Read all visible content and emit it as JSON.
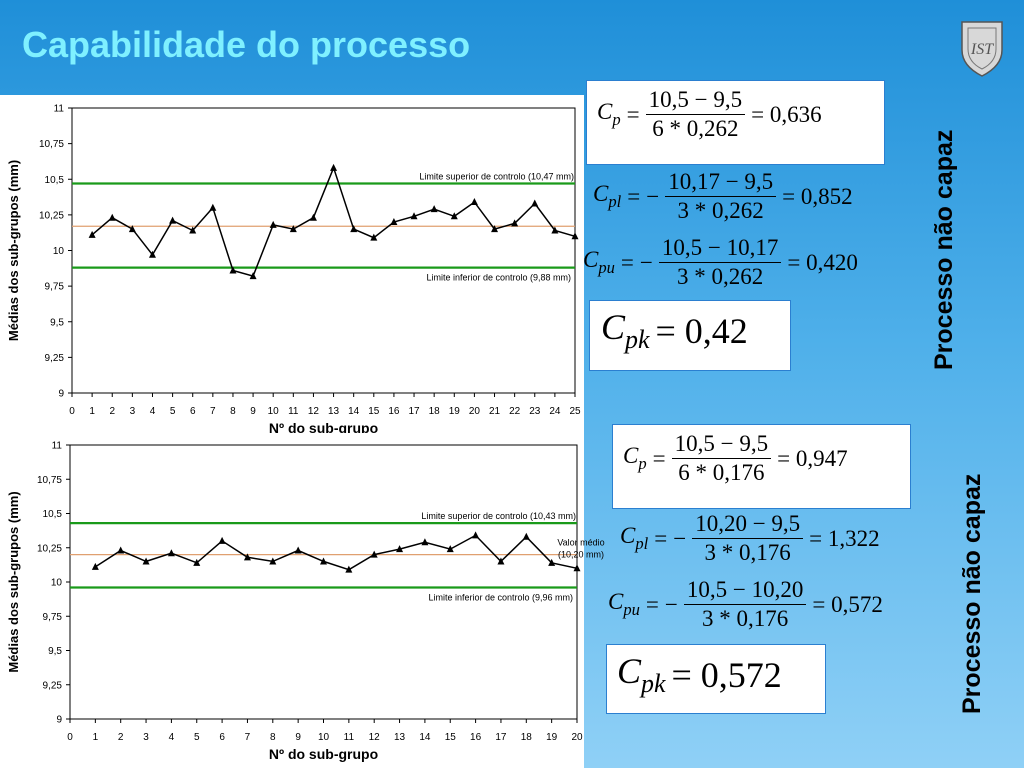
{
  "title": "Capabilidade do processo",
  "logo_icon": "ist-shield-logo",
  "colors": {
    "title": "#7ff0ff",
    "limit_line": "#1a9a1a",
    "mean_line": "#e0a070",
    "series": "#000000"
  },
  "chart_data": [
    {
      "type": "line",
      "xlabel": "Nº do sub-grupo",
      "ylabel": "Médias dos sub-grupos (mm)",
      "xlim": [
        0,
        25
      ],
      "ylim": [
        9,
        11
      ],
      "y_ticks": [
        "9",
        "9,25",
        "9,5",
        "9,75",
        "10",
        "10,25",
        "10,5",
        "10,75",
        "11"
      ],
      "x_ticks": [
        "0",
        "1",
        "2",
        "3",
        "4",
        "5",
        "6",
        "7",
        "8",
        "9",
        "10",
        "11",
        "12",
        "13",
        "14",
        "15",
        "16",
        "17",
        "18",
        "19",
        "20",
        "21",
        "22",
        "23",
        "24",
        "25"
      ],
      "x": [
        1,
        2,
        3,
        4,
        5,
        6,
        7,
        8,
        9,
        10,
        11,
        12,
        13,
        14,
        15,
        16,
        17,
        18,
        19,
        20,
        21,
        22,
        23,
        24,
        25
      ],
      "values": [
        10.11,
        10.23,
        10.15,
        9.97,
        10.21,
        10.14,
        10.3,
        9.86,
        9.82,
        10.18,
        10.15,
        10.23,
        10.58,
        10.15,
        10.09,
        10.2,
        10.24,
        10.29,
        10.24,
        10.34,
        10.15,
        10.19,
        10.33,
        10.14,
        10.1
      ],
      "limits": [
        {
          "label": "Limite superior de controlo (10,47 mm)",
          "value": 10.47,
          "kind": "ucl"
        },
        {
          "label": "Limite inferior de controlo (9,88 mm)",
          "value": 9.88,
          "kind": "lcl"
        },
        {
          "label": "",
          "value": 10.17,
          "kind": "mean"
        }
      ]
    },
    {
      "type": "line",
      "xlabel": "Nº do sub-grupo",
      "ylabel": "Médias dos sub-grupos (mm)",
      "xlim": [
        0,
        20
      ],
      "ylim": [
        9,
        11
      ],
      "y_ticks": [
        "9",
        "9,25",
        "9,5",
        "9,75",
        "10",
        "10,25",
        "10,5",
        "10,75",
        "11"
      ],
      "x_ticks": [
        "0",
        "1",
        "2",
        "3",
        "4",
        "5",
        "6",
        "7",
        "8",
        "9",
        "10",
        "11",
        "12",
        "13",
        "14",
        "15",
        "16",
        "17",
        "18",
        "19",
        "20"
      ],
      "x": [
        1,
        2,
        3,
        4,
        5,
        6,
        7,
        8,
        9,
        10,
        11,
        12,
        13,
        14,
        15,
        16,
        17,
        18,
        19,
        20
      ],
      "values": [
        10.11,
        10.23,
        10.15,
        10.21,
        10.14,
        10.3,
        10.18,
        10.15,
        10.23,
        10.15,
        10.09,
        10.2,
        10.24,
        10.29,
        10.24,
        10.34,
        10.15,
        10.33,
        10.14,
        10.1
      ],
      "limits": [
        {
          "label": "Limite superior de controlo (10,43 mm)",
          "value": 10.43,
          "kind": "ucl"
        },
        {
          "label": "Limite inferior de controlo (9,96 mm)",
          "value": 9.96,
          "kind": "lcl"
        },
        {
          "label": "Valor médio (10,20 mm)",
          "value": 10.2,
          "kind": "mean"
        }
      ]
    }
  ],
  "formulas_top": {
    "cp": {
      "sym": "C",
      "sub": "p",
      "num": "10,5 − 9,5",
      "den": "6 * 0,262",
      "result": "= 0,636",
      "sign": ""
    },
    "cpl": {
      "sym": "C",
      "sub": "pl",
      "num": "10,17 − 9,5",
      "den": "3 * 0,262",
      "result": "= 0,852",
      "sign": "−"
    },
    "cpu": {
      "sym": "C",
      "sub": "pu",
      "num": "10,5 − 10,17",
      "den": "3 * 0,262",
      "result": "= 0,420",
      "sign": "−"
    },
    "cpk": {
      "sym": "C",
      "sub": "pk",
      "result": "= 0,42"
    },
    "verdict": "Processo não capaz"
  },
  "formulas_bottom": {
    "cp": {
      "sym": "C",
      "sub": "p",
      "num": "10,5 − 9,5",
      "den": "6 * 0,176",
      "result": "= 0,947",
      "sign": ""
    },
    "cpl": {
      "sym": "C",
      "sub": "pl",
      "num": "10,20 − 9,5",
      "den": "3 * 0,176",
      "result": "= 1,322",
      "sign": "−"
    },
    "cpu": {
      "sym": "C",
      "sub": "pu",
      "num": "10,5 − 10,20",
      "den": "3 * 0,176",
      "result": "= 0,572",
      "sign": "−"
    },
    "cpk": {
      "sym": "C",
      "sub": "pk",
      "result": "= 0,572"
    },
    "verdict": "Processo não capaz"
  }
}
